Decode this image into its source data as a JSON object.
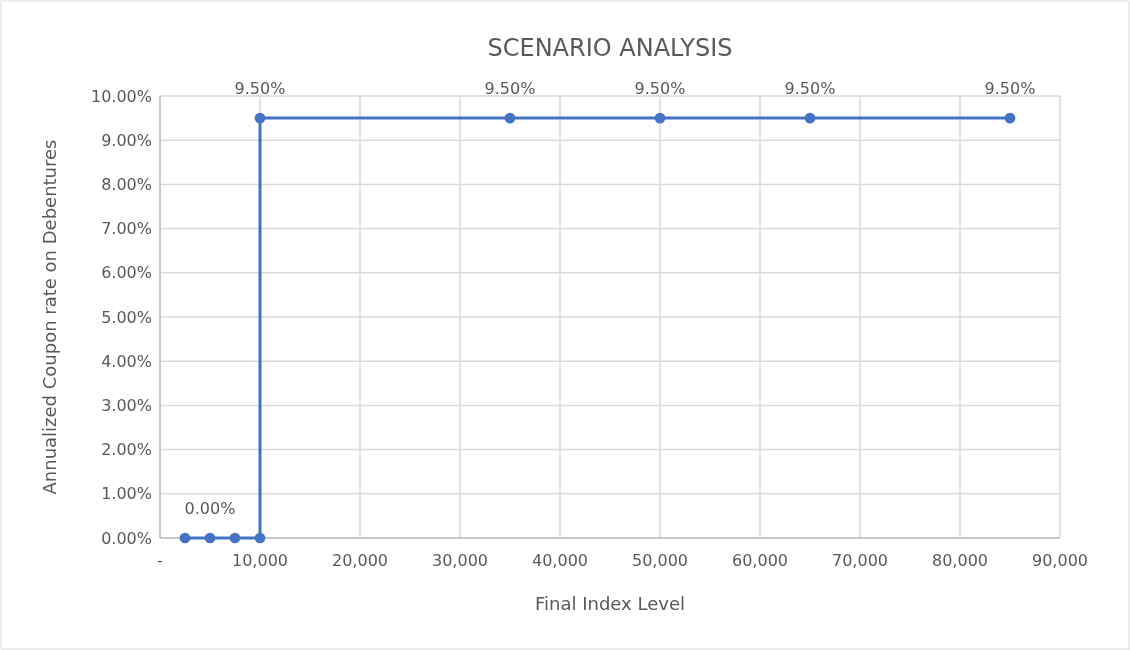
{
  "chart_data": {
    "type": "line",
    "title": "SCENARIO ANALYSIS",
    "xlabel": "Final Index Level",
    "ylabel": "Annualized Coupon rate on Debentures",
    "x": [
      2500,
      5000,
      7500,
      10000,
      10000,
      35000,
      50000,
      65000,
      85000
    ],
    "series": [
      {
        "color": "#4472c4",
        "values": [
          0,
          0,
          0,
          0,
          9.5,
          9.5,
          9.5,
          9.5,
          9.5
        ],
        "value_labels": [
          null,
          "0.00%",
          null,
          null,
          "9.50%",
          "9.50%",
          "9.50%",
          "9.50%",
          "9.50%"
        ]
      }
    ],
    "xlim": [
      0,
      90000
    ],
    "xticks": [
      {
        "value": 0,
        "label": "-"
      },
      {
        "value": 10000,
        "label": "10,000"
      },
      {
        "value": 20000,
        "label": "20,000"
      },
      {
        "value": 30000,
        "label": "30,000"
      },
      {
        "value": 40000,
        "label": "40,000"
      },
      {
        "value": 50000,
        "label": "50,000"
      },
      {
        "value": 60000,
        "label": "60,000"
      },
      {
        "value": 70000,
        "label": "70,000"
      },
      {
        "value": 80000,
        "label": "80,000"
      },
      {
        "value": 90000,
        "label": "90,000"
      }
    ],
    "ylim": [
      0,
      10
    ],
    "yticks": [
      {
        "value": 0,
        "label": "0.00%"
      },
      {
        "value": 1,
        "label": "1.00%"
      },
      {
        "value": 2,
        "label": "2.00%"
      },
      {
        "value": 3,
        "label": "3.00%"
      },
      {
        "value": 4,
        "label": "4.00%"
      },
      {
        "value": 5,
        "label": "5.00%"
      },
      {
        "value": 6,
        "label": "6.00%"
      },
      {
        "value": 7,
        "label": "7.00%"
      },
      {
        "value": 8,
        "label": "8.00%"
      },
      {
        "value": 9,
        "label": "9.00%"
      },
      {
        "value": 10,
        "label": "10.00%"
      }
    ],
    "grid": true,
    "marker": "circle",
    "line_style": "solid"
  }
}
